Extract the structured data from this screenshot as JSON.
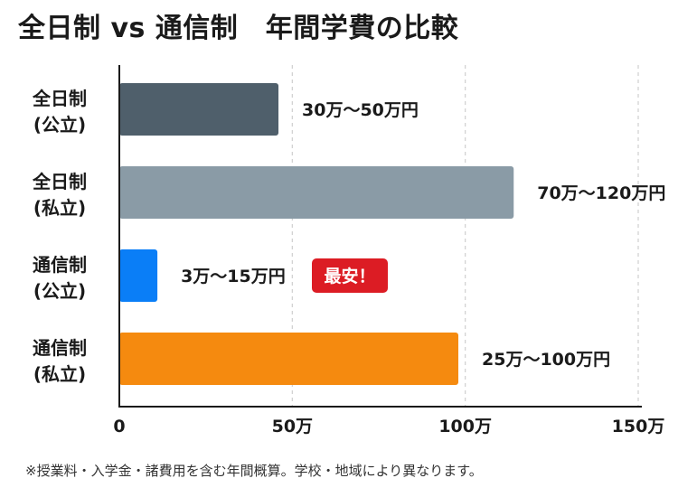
{
  "title": "全日制 vs 通信制　年間学費の比較",
  "footnote": "※授業料・入学金・諸費用を含む年間概算。学校・地域により異なります。",
  "chart_data": {
    "type": "bar",
    "orientation": "horizontal",
    "unit": "万円",
    "categories": [
      [
        "全日制",
        "(公立)"
      ],
      [
        "全日制",
        "(私立)"
      ],
      [
        "通信制",
        "(公立)"
      ],
      [
        "通信制",
        "(私立)"
      ]
    ],
    "ranges": [
      [
        30,
        50
      ],
      [
        70,
        120
      ],
      [
        3,
        15
      ],
      [
        25,
        100
      ]
    ],
    "bar_values": [
      46,
      114,
      11,
      98
    ],
    "value_labels": [
      "30万〜50万円",
      "70万〜120万円",
      "3万〜15万円",
      "25万〜100万円"
    ],
    "colors": [
      "#4f5f6b",
      "#8a9ba6",
      "#0a7ef7",
      "#f58a0f"
    ],
    "badge": {
      "index": 2,
      "text": "最安！",
      "color": "#dc1c24"
    },
    "xlim": [
      0,
      150
    ],
    "xticks": [
      0,
      50,
      100,
      150
    ],
    "xtick_labels": [
      "0",
      "50万",
      "100万",
      "150万"
    ],
    "grid": true
  }
}
